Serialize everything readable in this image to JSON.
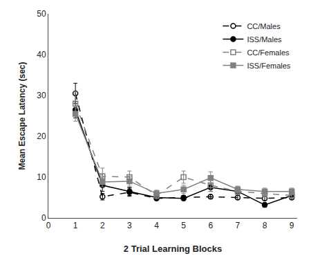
{
  "chart_data": {
    "type": "line",
    "x_label": "2 Trial Learning Blocks",
    "y_label": "Mean Escape Latency (sec)",
    "x": [
      1,
      2,
      3,
      4,
      5,
      6,
      7,
      8,
      9
    ],
    "series": [
      {
        "name": "CC/Males",
        "color": "#000000",
        "marker": "circle-open",
        "line_style": "dash",
        "values": [
          30.5,
          5.2,
          6.3,
          4.8,
          5.0,
          5.2,
          5.0,
          4.8,
          5.0
        ],
        "errors": [
          2.5,
          0.8,
          1.0,
          0.5,
          0.5,
          0.5,
          0.5,
          0.5,
          0.5
        ]
      },
      {
        "name": "ISS/Males",
        "color": "#000000",
        "marker": "circle",
        "line_style": "solid",
        "values": [
          26.5,
          8.0,
          6.5,
          5.0,
          4.8,
          7.5,
          6.5,
          3.2,
          5.5
        ],
        "errors": [
          2.0,
          1.5,
          1.0,
          0.5,
          0.5,
          1.0,
          0.8,
          0.5,
          0.5
        ]
      },
      {
        "name": "CC/Females",
        "color": "#808080",
        "marker": "square-open",
        "line_style": "dash",
        "values": [
          28.0,
          10.2,
          10.0,
          5.5,
          10.0,
          8.0,
          6.5,
          6.0,
          5.5
        ],
        "errors": [
          3.0,
          2.0,
          1.5,
          0.8,
          1.5,
          1.5,
          0.8,
          0.8,
          0.5
        ]
      },
      {
        "name": "ISS/Females",
        "color": "#808080",
        "marker": "square",
        "line_style": "solid",
        "values": [
          25.5,
          8.8,
          9.0,
          6.0,
          7.0,
          9.8,
          7.0,
          6.5,
          6.5
        ],
        "errors": [
          1.8,
          1.2,
          1.2,
          0.8,
          1.0,
          1.5,
          0.8,
          0.8,
          0.8
        ]
      }
    ],
    "xlim": [
      0,
      9.2
    ],
    "ylim": [
      0,
      50
    ],
    "xticks": [
      0,
      1,
      2,
      3,
      4,
      5,
      6,
      7,
      8,
      9
    ],
    "yticks": [
      0,
      10,
      20,
      30,
      40,
      50
    ],
    "grid": false,
    "legend": "upper right"
  }
}
